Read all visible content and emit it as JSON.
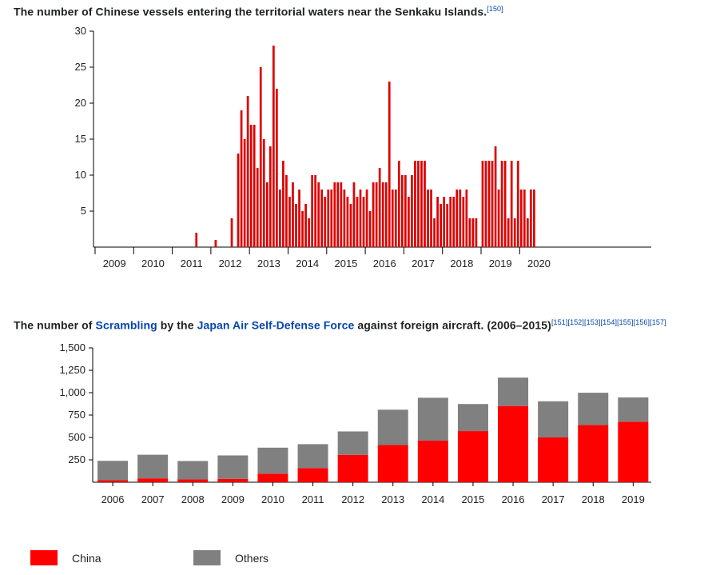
{
  "chart_data": [
    {
      "type": "bar",
      "title": "The number of Chinese vessels entering the territorial waters near the Senkaku Islands.",
      "ref": "[150]",
      "ylim": [
        0,
        30
      ],
      "y_ticks": [
        "5",
        "10",
        "15",
        "20",
        "25",
        "30"
      ],
      "x_tick_labels": [
        "2009",
        "2010",
        "2011",
        "2012",
        "2013",
        "2014",
        "2015",
        "2016",
        "2017",
        "2018",
        "2019",
        "2020"
      ],
      "xlabel": "",
      "ylabel": "",
      "color": "#dd0000",
      "monthly_values": [
        {
          "year": 2011,
          "month": 8,
          "value": 2
        },
        {
          "year": 2012,
          "month": 2,
          "value": 1
        },
        {
          "year": 2012,
          "month": 7,
          "value": 4
        },
        {
          "year": 2012,
          "month": 9,
          "value": 13
        },
        {
          "year": 2012,
          "month": 10,
          "value": 19
        },
        {
          "year": 2012,
          "month": 11,
          "value": 15
        },
        {
          "year": 2012,
          "month": 12,
          "value": 21
        },
        {
          "year": 2013,
          "month": 1,
          "value": 17
        },
        {
          "year": 2013,
          "month": 2,
          "value": 17
        },
        {
          "year": 2013,
          "month": 3,
          "value": 11
        },
        {
          "year": 2013,
          "month": 4,
          "value": 25
        },
        {
          "year": 2013,
          "month": 5,
          "value": 15
        },
        {
          "year": 2013,
          "month": 6,
          "value": 9
        },
        {
          "year": 2013,
          "month": 7,
          "value": 14
        },
        {
          "year": 2013,
          "month": 8,
          "value": 28
        },
        {
          "year": 2013,
          "month": 9,
          "value": 22
        },
        {
          "year": 2013,
          "month": 10,
          "value": 8
        },
        {
          "year": 2013,
          "month": 11,
          "value": 12
        },
        {
          "year": 2013,
          "month": 12,
          "value": 10
        },
        {
          "year": 2014,
          "month": 1,
          "value": 7
        },
        {
          "year": 2014,
          "month": 2,
          "value": 9
        },
        {
          "year": 2014,
          "month": 3,
          "value": 6
        },
        {
          "year": 2014,
          "month": 4,
          "value": 8
        },
        {
          "year": 2014,
          "month": 5,
          "value": 5
        },
        {
          "year": 2014,
          "month": 6,
          "value": 6
        },
        {
          "year": 2014,
          "month": 7,
          "value": 4
        },
        {
          "year": 2014,
          "month": 8,
          "value": 10
        },
        {
          "year": 2014,
          "month": 9,
          "value": 10
        },
        {
          "year": 2014,
          "month": 10,
          "value": 9
        },
        {
          "year": 2014,
          "month": 11,
          "value": 8
        },
        {
          "year": 2014,
          "month": 12,
          "value": 7
        },
        {
          "year": 2015,
          "month": 1,
          "value": 8
        },
        {
          "year": 2015,
          "month": 2,
          "value": 8
        },
        {
          "year": 2015,
          "month": 3,
          "value": 9
        },
        {
          "year": 2015,
          "month": 4,
          "value": 9
        },
        {
          "year": 2015,
          "month": 5,
          "value": 9
        },
        {
          "year": 2015,
          "month": 6,
          "value": 8
        },
        {
          "year": 2015,
          "month": 7,
          "value": 7
        },
        {
          "year": 2015,
          "month": 8,
          "value": 6
        },
        {
          "year": 2015,
          "month": 9,
          "value": 9
        },
        {
          "year": 2015,
          "month": 10,
          "value": 7
        },
        {
          "year": 2015,
          "month": 11,
          "value": 8
        },
        {
          "year": 2015,
          "month": 12,
          "value": 7
        },
        {
          "year": 2016,
          "month": 1,
          "value": 8
        },
        {
          "year": 2016,
          "month": 2,
          "value": 5
        },
        {
          "year": 2016,
          "month": 3,
          "value": 9
        },
        {
          "year": 2016,
          "month": 4,
          "value": 9
        },
        {
          "year": 2016,
          "month": 5,
          "value": 11
        },
        {
          "year": 2016,
          "month": 6,
          "value": 9
        },
        {
          "year": 2016,
          "month": 7,
          "value": 9
        },
        {
          "year": 2016,
          "month": 8,
          "value": 23
        },
        {
          "year": 2016,
          "month": 9,
          "value": 8
        },
        {
          "year": 2016,
          "month": 10,
          "value": 8
        },
        {
          "year": 2016,
          "month": 11,
          "value": 12
        },
        {
          "year": 2016,
          "month": 12,
          "value": 10
        },
        {
          "year": 2017,
          "month": 1,
          "value": 10
        },
        {
          "year": 2017,
          "month": 2,
          "value": 7
        },
        {
          "year": 2017,
          "month": 3,
          "value": 10
        },
        {
          "year": 2017,
          "month": 4,
          "value": 12
        },
        {
          "year": 2017,
          "month": 5,
          "value": 12
        },
        {
          "year": 2017,
          "month": 6,
          "value": 12
        },
        {
          "year": 2017,
          "month": 7,
          "value": 12
        },
        {
          "year": 2017,
          "month": 8,
          "value": 8
        },
        {
          "year": 2017,
          "month": 9,
          "value": 8
        },
        {
          "year": 2017,
          "month": 10,
          "value": 4
        },
        {
          "year": 2017,
          "month": 11,
          "value": 7
        },
        {
          "year": 2017,
          "month": 12,
          "value": 6
        },
        {
          "year": 2018,
          "month": 1,
          "value": 7
        },
        {
          "year": 2018,
          "month": 2,
          "value": 6
        },
        {
          "year": 2018,
          "month": 3,
          "value": 7
        },
        {
          "year": 2018,
          "month": 4,
          "value": 7
        },
        {
          "year": 2018,
          "month": 5,
          "value": 8
        },
        {
          "year": 2018,
          "month": 6,
          "value": 8
        },
        {
          "year": 2018,
          "month": 7,
          "value": 7
        },
        {
          "year": 2018,
          "month": 8,
          "value": 8
        },
        {
          "year": 2018,
          "month": 9,
          "value": 4
        },
        {
          "year": 2018,
          "month": 10,
          "value": 4
        },
        {
          "year": 2018,
          "month": 11,
          "value": 4
        },
        {
          "year": 2019,
          "month": 1,
          "value": 12
        },
        {
          "year": 2019,
          "month": 2,
          "value": 12
        },
        {
          "year": 2019,
          "month": 3,
          "value": 12
        },
        {
          "year": 2019,
          "month": 4,
          "value": 12
        },
        {
          "year": 2019,
          "month": 5,
          "value": 14
        },
        {
          "year": 2019,
          "month": 6,
          "value": 8
        },
        {
          "year": 2019,
          "month": 7,
          "value": 12
        },
        {
          "year": 2019,
          "month": 8,
          "value": 12
        },
        {
          "year": 2019,
          "month": 9,
          "value": 4
        },
        {
          "year": 2019,
          "month": 10,
          "value": 12
        },
        {
          "year": 2019,
          "month": 11,
          "value": 4
        },
        {
          "year": 2019,
          "month": 12,
          "value": 12
        },
        {
          "year": 2020,
          "month": 1,
          "value": 8
        },
        {
          "year": 2020,
          "month": 2,
          "value": 8
        },
        {
          "year": 2020,
          "month": 3,
          "value": 4
        },
        {
          "year": 2020,
          "month": 4,
          "value": 8
        },
        {
          "year": 2020,
          "month": 5,
          "value": 8
        }
      ]
    },
    {
      "type": "bar",
      "stacked": true,
      "title_parts": [
        "The number of ",
        "Scrambling",
        " by the ",
        "Japan Air Self-Defense Force",
        " against foreign aircraft. (2006–2015)"
      ],
      "refs": [
        "[151]",
        "[152]",
        "[153]",
        "[154]",
        "[155]",
        "[156]",
        "[157]"
      ],
      "ylim": [
        0,
        1500
      ],
      "y_ticks": [
        "250",
        "500",
        "750",
        "1,000",
        "1,250",
        "1,500"
      ],
      "categories": [
        "2006",
        "2007",
        "2008",
        "2009",
        "2010",
        "2011",
        "2012",
        "2013",
        "2014",
        "2015",
        "2016",
        "2017",
        "2018",
        "2019"
      ],
      "series": [
        {
          "name": "China",
          "color": "#ff0000",
          "values": [
            22,
            43,
            31,
            38,
            96,
            156,
            306,
            415,
            464,
            571,
            851,
            500,
            638,
            675
          ]
        },
        {
          "name": "Others",
          "color": "#808080",
          "values": [
            217,
            264,
            206,
            261,
            290,
            269,
            261,
            395,
            479,
            302,
            317,
            404,
            361,
            272
          ]
        }
      ],
      "xlabel": "",
      "ylabel": ""
    }
  ],
  "legend": [
    {
      "label": "China",
      "color": "#ff0000"
    },
    {
      "label": "Others",
      "color": "#808080"
    }
  ]
}
